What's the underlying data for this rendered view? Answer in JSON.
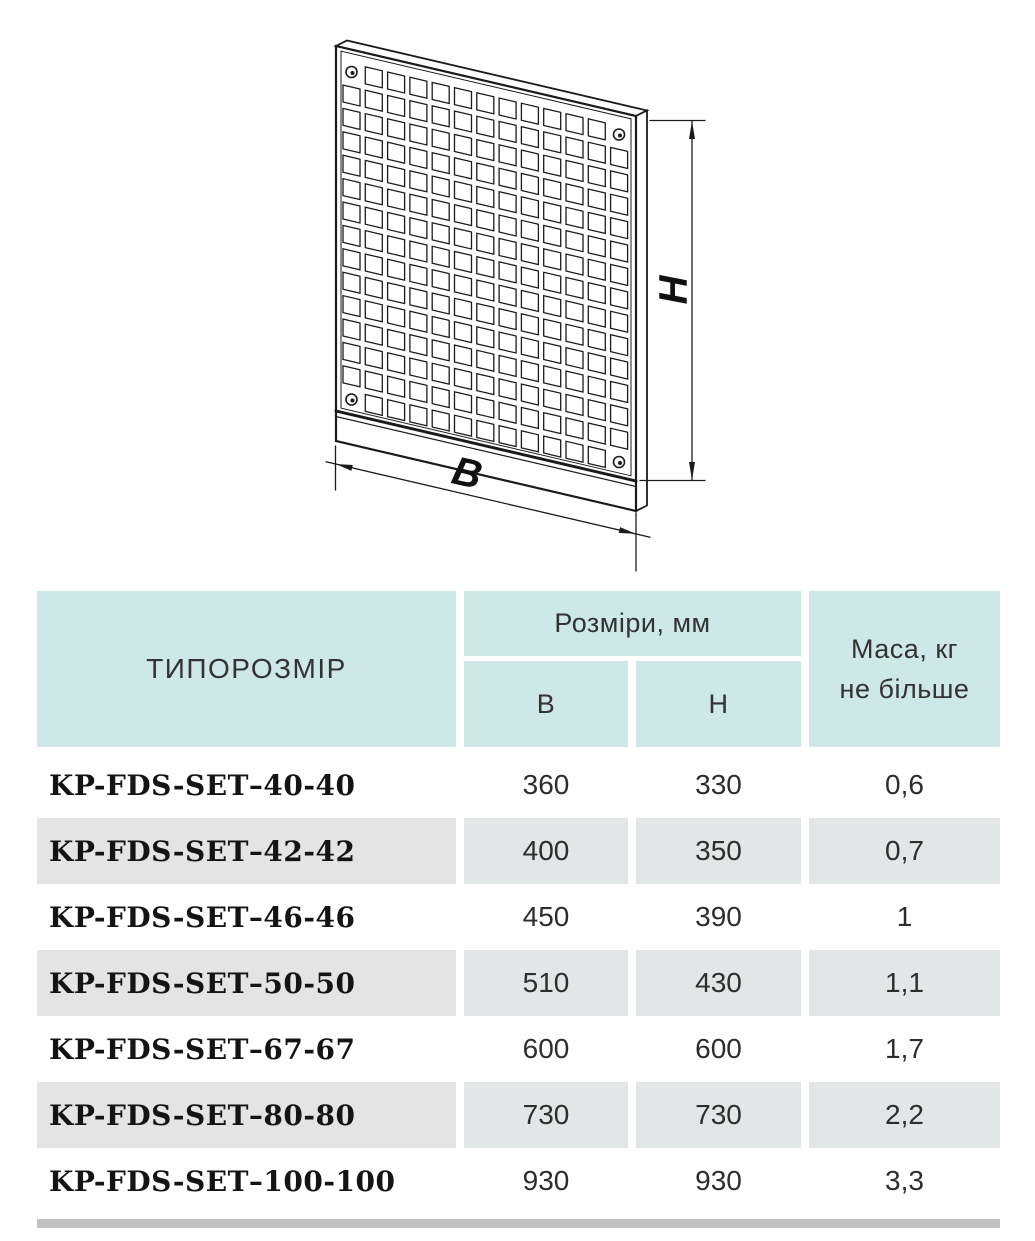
{
  "drawing": {
    "width_label": "B",
    "height_label": "H"
  },
  "table": {
    "header": {
      "col_type": "ТИПОРОЗМІР",
      "col_dimensions": "Розміри, мм",
      "col_b": "B",
      "col_h": "H",
      "col_mass_line1": "Маса, кг",
      "col_mass_line2": "не більше"
    },
    "rows": [
      {
        "name": "KP-FDS-SET–40-40",
        "b": "360",
        "h": "330",
        "mass": "0,6"
      },
      {
        "name": "KP-FDS-SET–42-42",
        "b": "400",
        "h": "350",
        "mass": "0,7"
      },
      {
        "name": "KP-FDS-SET–46-46",
        "b": "450",
        "h": "390",
        "mass": "1"
      },
      {
        "name": "KP-FDS-SET–50-50",
        "b": "510",
        "h": "430",
        "mass": "1,1"
      },
      {
        "name": "KP-FDS-SET–67-67",
        "b": "600",
        "h": "600",
        "mass": "1,7"
      },
      {
        "name": "KP-FDS-SET–80-80",
        "b": "730",
        "h": "730",
        "mass": "2,2"
      },
      {
        "name": "KP-FDS-SET–100-100",
        "b": "930",
        "h": "930",
        "mass": "3,3"
      }
    ]
  },
  "colors": {
    "header_bg": "#cde8e6",
    "row_name_bg": "#e4e4e4",
    "row_value_bg": "#e2e6e7",
    "bottom_bar": "#c2c2c2"
  }
}
